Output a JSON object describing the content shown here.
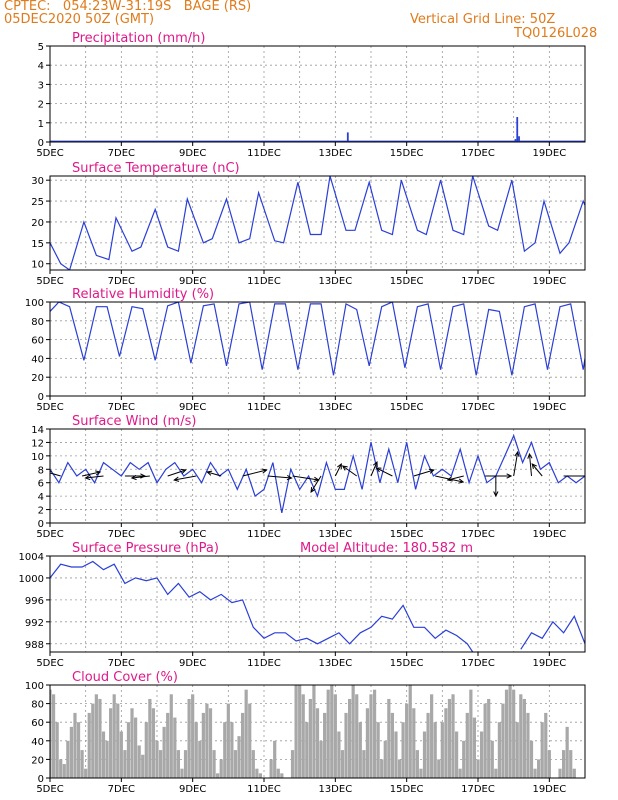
{
  "header": {
    "line1": "CPTEC:   054:23W-31:19S   BAGE (RS)",
    "line2": "05DEC2020 50Z (GMT)",
    "grid_note": "Vertical Grid Line: 50Z",
    "code": "TQ0126L028"
  },
  "colors": {
    "header": "#e07b1c",
    "title": "#e0198a",
    "series": "#2b3fd6",
    "cloud": "#a8a8a8",
    "wind_arrow": "#000000"
  },
  "chart_data": [
    {
      "type": "bar",
      "title": "Precipitation (mm/h)",
      "ylim": [
        0,
        5
      ],
      "yticks": [
        0,
        1,
        2,
        3,
        4,
        5
      ],
      "xlim": [
        5,
        20
      ],
      "xticks": [
        "5DEC",
        "7DEC",
        "9DEC",
        "11DEC",
        "13DEC",
        "15DEC",
        "17DEC",
        "19DEC"
      ],
      "grid": true,
      "series": [
        {
          "x": [
            13.35,
            18.05,
            18.1,
            18.15
          ],
          "values": [
            0.5,
            0.15,
            1.3,
            0.3
          ]
        }
      ]
    },
    {
      "type": "line",
      "title": "Surface Temperature (nC)",
      "ylim": [
        8.5,
        31
      ],
      "yticks": [
        10,
        15,
        20,
        25,
        30
      ],
      "xlim": [
        5,
        20
      ],
      "xticks": [
        "5DEC",
        "7DEC",
        "9DEC",
        "11DEC",
        "13DEC",
        "15DEC",
        "17DEC",
        "19DEC"
      ],
      "grid": true,
      "series": [
        {
          "x": [
            5.0,
            5.3,
            5.55,
            5.95,
            6.3,
            6.65,
            6.85,
            7.3,
            7.55,
            7.95,
            8.3,
            8.6,
            8.85,
            9.3,
            9.55,
            9.95,
            10.3,
            10.6,
            10.85,
            11.3,
            11.55,
            11.95,
            12.3,
            12.6,
            12.85,
            13.3,
            13.55,
            13.95,
            14.3,
            14.6,
            14.85,
            15.3,
            15.55,
            15.95,
            16.3,
            16.6,
            16.85,
            17.3,
            17.55,
            17.95,
            18.3,
            18.6,
            18.85,
            19.3,
            19.55,
            19.95,
            20.0
          ],
          "values": [
            15,
            10,
            8.5,
            20,
            12,
            11,
            21,
            13,
            14,
            23,
            14,
            13,
            25.5,
            15,
            16,
            25.5,
            15,
            16,
            27,
            15.5,
            15,
            29.5,
            17,
            17,
            31,
            18,
            18,
            29.5,
            18,
            17,
            30,
            18,
            17,
            30,
            18,
            17,
            31,
            19,
            18,
            30,
            13,
            15,
            25,
            12.5,
            15,
            25,
            24
          ]
        }
      ]
    },
    {
      "type": "line",
      "title": "Relative Humidity (%)",
      "ylim": [
        0,
        100
      ],
      "yticks": [
        0,
        20,
        40,
        60,
        80,
        100
      ],
      "xlim": [
        5,
        20
      ],
      "xticks": [
        "5DEC",
        "7DEC",
        "9DEC",
        "11DEC",
        "13DEC",
        "15DEC",
        "17DEC",
        "19DEC"
      ],
      "grid": true,
      "series": [
        {
          "x": [
            5.0,
            5.25,
            5.55,
            5.95,
            6.3,
            6.6,
            6.95,
            7.3,
            7.6,
            7.95,
            8.3,
            8.6,
            8.95,
            9.3,
            9.6,
            9.95,
            10.3,
            10.6,
            10.95,
            11.3,
            11.6,
            11.95,
            12.3,
            12.6,
            12.95,
            13.3,
            13.6,
            13.95,
            14.3,
            14.6,
            14.95,
            15.3,
            15.6,
            15.95,
            16.3,
            16.6,
            16.95,
            17.3,
            17.6,
            17.95,
            18.3,
            18.6,
            18.95,
            19.3,
            19.6,
            19.95,
            20.0
          ],
          "values": [
            90,
            100,
            95,
            38,
            95,
            95,
            42,
            95,
            93,
            38,
            96,
            100,
            35,
            96,
            98,
            32,
            98,
            100,
            28,
            98,
            98,
            28,
            98,
            98,
            22,
            98,
            92,
            32,
            95,
            100,
            30,
            95,
            98,
            28,
            95,
            98,
            22,
            92,
            90,
            22,
            95,
            98,
            28,
            95,
            98,
            28,
            40
          ]
        }
      ]
    },
    {
      "type": "line",
      "title": "Surface Wind (m/s)",
      "ylim": [
        0,
        14
      ],
      "yticks": [
        0,
        2,
        4,
        6,
        8,
        10,
        12,
        14
      ],
      "xlim": [
        5,
        20
      ],
      "xticks": [
        "5DEC",
        "7DEC",
        "9DEC",
        "11DEC",
        "13DEC",
        "15DEC",
        "17DEC",
        "19DEC"
      ],
      "grid": true,
      "series": [
        {
          "x": [
            5.0,
            5.25,
            5.5,
            5.75,
            6.0,
            6.25,
            6.5,
            6.75,
            7.0,
            7.25,
            7.5,
            7.75,
            8.0,
            8.25,
            8.5,
            8.75,
            9.0,
            9.25,
            9.5,
            9.75,
            10.0,
            10.25,
            10.5,
            10.75,
            11.0,
            11.25,
            11.5,
            11.75,
            12.0,
            12.25,
            12.5,
            12.75,
            13.0,
            13.25,
            13.5,
            13.75,
            14.0,
            14.25,
            14.5,
            14.75,
            15.0,
            15.25,
            15.5,
            15.75,
            16.0,
            16.25,
            16.5,
            16.75,
            17.0,
            17.25,
            17.5,
            17.75,
            18.0,
            18.25,
            18.5,
            18.75,
            19.0,
            19.25,
            19.5,
            19.75,
            20.0
          ],
          "values": [
            8,
            6,
            9,
            7,
            8,
            6,
            9,
            8,
            7,
            9,
            8,
            9,
            6,
            8,
            9,
            7,
            8,
            6,
            9,
            7,
            8,
            5,
            8,
            4,
            5,
            9,
            1.5,
            8,
            5,
            7,
            4,
            9,
            5,
            5,
            10,
            5,
            12,
            6,
            11,
            6,
            12,
            5,
            10,
            7,
            8,
            7,
            11,
            6,
            10,
            6,
            7,
            10,
            13,
            9,
            12,
            8,
            9,
            6,
            7,
            6,
            7
          ]
        }
      ],
      "wind_arrows": [
        {
          "x": 5.3,
          "dx": -14,
          "dy": -4
        },
        {
          "x": 5.9,
          "dx": 18,
          "dy": -4
        },
        {
          "x": 6.5,
          "dx": -18,
          "dy": 2
        },
        {
          "x": 7.1,
          "dx": 20,
          "dy": 0
        },
        {
          "x": 7.8,
          "dx": -18,
          "dy": 2
        },
        {
          "x": 8.3,
          "dx": 18,
          "dy": -6
        },
        {
          "x": 9.1,
          "dx": -22,
          "dy": 4
        },
        {
          "x": 9.8,
          "dx": -14,
          "dy": -4
        },
        {
          "x": 10.4,
          "dx": 24,
          "dy": -6
        },
        {
          "x": 11.1,
          "dx": 24,
          "dy": 2
        },
        {
          "x": 11.8,
          "dx": 26,
          "dy": 4
        },
        {
          "x": 12.6,
          "dx": -10,
          "dy": 16
        },
        {
          "x": 13.0,
          "dx": 6,
          "dy": -12
        },
        {
          "x": 13.6,
          "dx": -14,
          "dy": -10
        },
        {
          "x": 14.0,
          "dx": 6,
          "dy": -14
        },
        {
          "x": 14.6,
          "dx": -16,
          "dy": -8
        },
        {
          "x": 15.2,
          "dx": 20,
          "dy": -6
        },
        {
          "x": 15.8,
          "dx": 28,
          "dy": 6
        },
        {
          "x": 16.6,
          "dx": -16,
          "dy": 4
        },
        {
          "x": 17.2,
          "dx": 26,
          "dy": 0
        },
        {
          "x": 17.5,
          "dx": 0,
          "dy": 20
        },
        {
          "x": 18.0,
          "dx": 4,
          "dy": -24
        },
        {
          "x": 18.5,
          "dx": -2,
          "dy": -22
        },
        {
          "x": 18.8,
          "dx": -10,
          "dy": -12
        },
        {
          "x": 19.4,
          "dx": 28,
          "dy": 0
        }
      ]
    },
    {
      "type": "line",
      "title": "Surface Pressure (hPa)",
      "annotation": "Model Altitude: 180.582 m",
      "ylim": [
        986.5,
        1004
      ],
      "yticks": [
        988,
        992,
        996,
        1000,
        1004
      ],
      "xlim": [
        5,
        20
      ],
      "xticks": [
        "5DEC",
        "7DEC",
        "9DEC",
        "11DEC",
        "13DEC",
        "15DEC",
        "17DEC",
        "19DEC"
      ],
      "grid": true,
      "series": [
        {
          "x": [
            5.0,
            5.3,
            5.6,
            5.9,
            6.2,
            6.5,
            6.8,
            7.1,
            7.4,
            7.7,
            8.0,
            8.3,
            8.6,
            8.9,
            9.2,
            9.5,
            9.8,
            10.1,
            10.4,
            10.7,
            11.0,
            11.3,
            11.6,
            11.9,
            12.2,
            12.5,
            12.8,
            13.1,
            13.4,
            13.7,
            14.0,
            14.3,
            14.6,
            14.9,
            15.2,
            15.5,
            15.8,
            16.1,
            16.4,
            16.7,
            16.85
          ],
          "values": [
            1000,
            1002.5,
            1002,
            1002,
            1003,
            1001.5,
            1002.5,
            999,
            1000,
            999.5,
            1000,
            997,
            999,
            996.5,
            997.5,
            996,
            997,
            995.5,
            996,
            991,
            989,
            990,
            990,
            988.5,
            989,
            988,
            989,
            990,
            988,
            990,
            991,
            993,
            992.5,
            995,
            991,
            991,
            989,
            990.5,
            989.5,
            988,
            986.5
          ]
        },
        {
          "x": [
            18.2,
            18.5,
            18.8,
            19.1,
            19.4,
            19.7,
            20.0
          ],
          "values": [
            987,
            990,
            989,
            992,
            990,
            993,
            988
          ]
        }
      ]
    },
    {
      "type": "bar",
      "title": "Cloud Cover (%)",
      "ylim": [
        0,
        100
      ],
      "yticks": [
        0,
        20,
        40,
        60,
        80,
        100
      ],
      "xlim": [
        5,
        20
      ],
      "xticks": [
        "5DEC",
        "7DEC",
        "9DEC",
        "11DEC",
        "13DEC",
        "15DEC",
        "17DEC",
        "19DEC"
      ],
      "grid": true,
      "series": [
        {
          "x": [
            5.0,
            5.1,
            5.2,
            5.3,
            5.4,
            5.5,
            5.6,
            5.7,
            5.8,
            5.9,
            6.0,
            6.1,
            6.2,
            6.3,
            6.4,
            6.5,
            6.6,
            6.7,
            6.8,
            6.9,
            7.0,
            7.1,
            7.2,
            7.3,
            7.4,
            7.5,
            7.6,
            7.7,
            7.8,
            7.9,
            8.0,
            8.1,
            8.2,
            8.3,
            8.4,
            8.5,
            8.6,
            8.7,
            8.8,
            8.9,
            9.0,
            9.1,
            9.2,
            9.3,
            9.4,
            9.5,
            9.6,
            9.7,
            9.8,
            9.9,
            10.0,
            10.1,
            10.2,
            10.3,
            10.4,
            10.5,
            10.6,
            10.7,
            10.8,
            10.9,
            11.0,
            11.1,
            11.2,
            11.3,
            11.4,
            11.5,
            11.6,
            11.7,
            11.8,
            11.9,
            12.0,
            12.1,
            12.2,
            12.3,
            12.4,
            12.5,
            12.6,
            12.7,
            12.8,
            12.9,
            13.0,
            13.1,
            13.2,
            13.3,
            13.4,
            13.5,
            13.6,
            13.7,
            13.8,
            13.9,
            14.0,
            14.1,
            14.2,
            14.3,
            14.4,
            14.5,
            14.6,
            14.7,
            14.8,
            14.9,
            15.0,
            15.1,
            15.2,
            15.3,
            15.4,
            15.5,
            15.6,
            15.7,
            15.8,
            15.9,
            16.0,
            16.1,
            16.2,
            16.3,
            16.4,
            16.5,
            16.6,
            16.7,
            16.8,
            16.9,
            17.0,
            17.1,
            17.2,
            17.3,
            17.4,
            17.5,
            17.6,
            17.7,
            17.8,
            17.9,
            18.0,
            18.1,
            18.2,
            18.3,
            18.4,
            18.5,
            18.6,
            18.7,
            18.8,
            18.9,
            19.0,
            19.1,
            19.2,
            19.3,
            19.4,
            19.5,
            19.6,
            19.7,
            19.8,
            19.9
          ],
          "values": [
            95,
            90,
            60,
            20,
            15,
            40,
            55,
            70,
            60,
            30,
            10,
            70,
            80,
            90,
            85,
            50,
            40,
            75,
            90,
            80,
            50,
            30,
            60,
            75,
            65,
            35,
            25,
            60,
            85,
            75,
            40,
            30,
            55,
            70,
            90,
            65,
            30,
            10,
            30,
            85,
            90,
            60,
            40,
            70,
            80,
            75,
            30,
            5,
            20,
            60,
            80,
            60,
            30,
            45,
            70,
            95,
            80,
            30,
            10,
            5,
            0,
            0,
            20,
            40,
            10,
            5,
            0,
            0,
            30,
            100,
            100,
            90,
            60,
            85,
            100,
            75,
            40,
            70,
            95,
            100,
            90,
            50,
            30,
            70,
            85,
            100,
            90,
            60,
            30,
            75,
            90,
            95,
            60,
            20,
            40,
            85,
            70,
            50,
            20,
            60,
            80,
            100,
            75,
            30,
            10,
            50,
            70,
            90,
            60,
            20,
            60,
            75,
            85,
            90,
            50,
            10,
            40,
            70,
            95,
            65,
            20,
            50,
            80,
            85,
            40,
            10,
            60,
            80,
            95,
            100,
            95,
            60,
            90,
            85,
            70,
            40,
            10,
            20,
            60,
            70,
            30,
            0,
            0,
            10,
            30,
            55,
            30,
            10,
            0,
            0
          ]
        }
      ]
    }
  ]
}
